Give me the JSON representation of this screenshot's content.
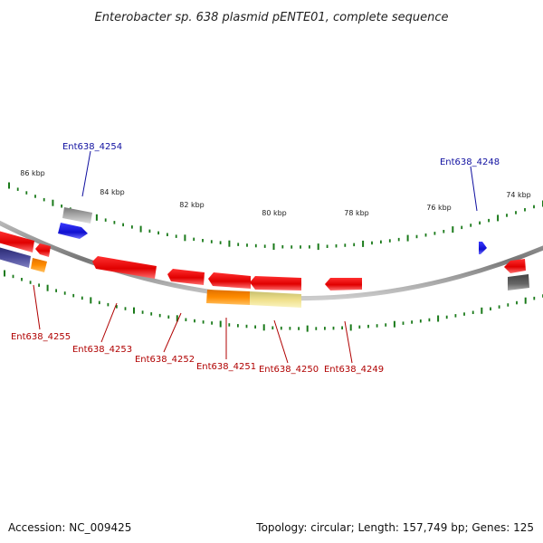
{
  "title": "Enterobacter sp. 638 plasmid pENTE01, complete sequence",
  "accession": "Accession: NC_009425",
  "summary": "Topology: circular; Length: 157,749 bp; Genes: 125",
  "ticks": [
    "86 kbp",
    "84 kbp",
    "82 kbp",
    "80 kbp",
    "78 kbp",
    "76 kbp",
    "74 kbp"
  ],
  "labels_forward": [
    "Ent638_4254",
    "Ent638_4248"
  ],
  "labels_reverse": [
    "Ent638_4255",
    "Ent638_4253",
    "Ent638_4252",
    "Ent638_4251",
    "Ent638_4250",
    "Ent638_4249"
  ],
  "colors": {
    "forward_label": "#1010a0",
    "reverse_label": "#b00000",
    "tick": "#1a7a1a",
    "backbone": "#8a8a8a",
    "gene_red": "#e00000",
    "gene_blue": "#1414e0",
    "gene_orange": "#ff8c00",
    "gene_yellow": "#efe08a",
    "gene_gray": "#9a9a9a",
    "gene_navy": "#3a3a8a"
  }
}
